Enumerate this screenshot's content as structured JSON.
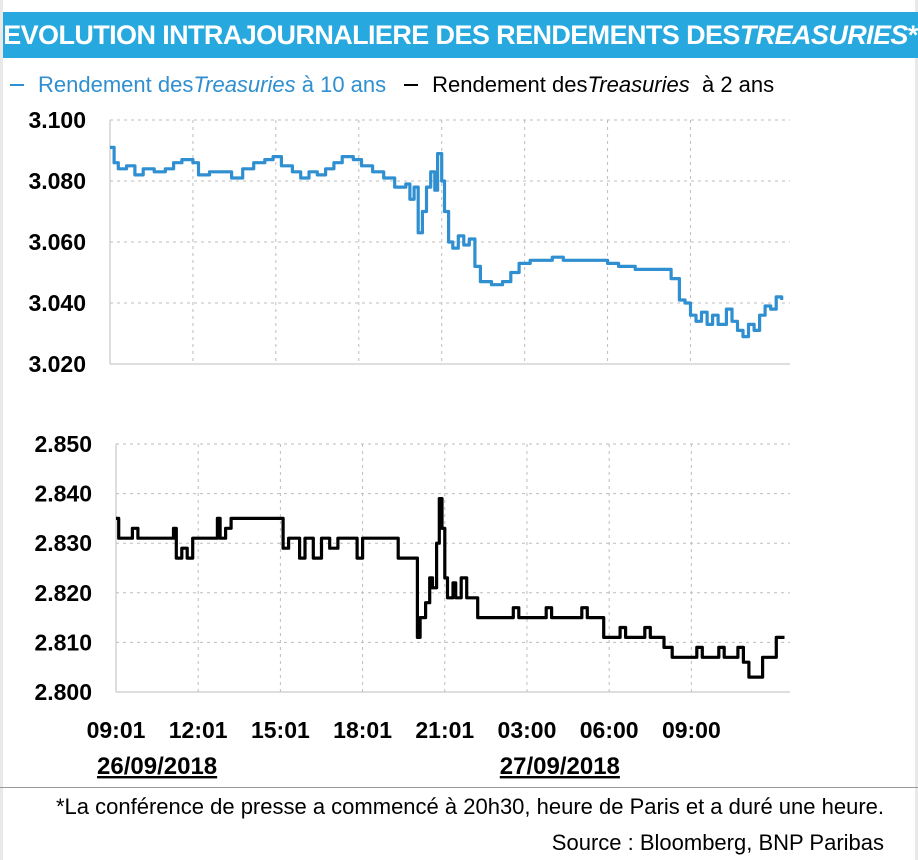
{
  "banner": {
    "title_main": "EVOLUTION INTRAJOURNALIERE DES RENDEMENTS DES ",
    "title_italic": "TREASURIES",
    "title_end": "*"
  },
  "legend": {
    "ten_year": {
      "pre": "Rendement des ",
      "italic": "Treasuries",
      "post": " à 10 ans",
      "color": "#2f8fd0"
    },
    "two_year": {
      "pre": "Rendement des ",
      "italic": "Treasuries",
      "post": "  à 2 ans",
      "color": "#000000"
    }
  },
  "footer": {
    "note": "*La conférence de presse a commencé à 20h30, heure de Paris et a duré une heure.",
    "source": "Source : Bloomberg, BNP Paribas"
  },
  "chart_data": [
    {
      "type": "line",
      "series": [
        {
          "name": "Rendement des Treasuries à 10 ans",
          "color": "#2f8fd0",
          "points": [
            [
              0,
              3.091
            ],
            [
              0.15,
              3.086
            ],
            [
              0.3,
              3.084
            ],
            [
              0.6,
              3.085
            ],
            [
              0.9,
              3.082
            ],
            [
              1.2,
              3.084
            ],
            [
              1.6,
              3.083
            ],
            [
              2.0,
              3.084
            ],
            [
              2.3,
              3.086
            ],
            [
              2.6,
              3.087
            ],
            [
              3.0,
              3.086
            ],
            [
              3.2,
              3.082
            ],
            [
              3.6,
              3.083
            ],
            [
              4.0,
              3.083
            ],
            [
              4.4,
              3.081
            ],
            [
              4.8,
              3.084
            ],
            [
              5.2,
              3.086
            ],
            [
              5.6,
              3.087
            ],
            [
              5.9,
              3.088
            ],
            [
              6.2,
              3.085
            ],
            [
              6.6,
              3.083
            ],
            [
              6.9,
              3.081
            ],
            [
              7.2,
              3.083
            ],
            [
              7.5,
              3.082
            ],
            [
              7.8,
              3.084
            ],
            [
              8.1,
              3.086
            ],
            [
              8.4,
              3.088
            ],
            [
              8.8,
              3.087
            ],
            [
              9.1,
              3.085
            ],
            [
              9.5,
              3.083
            ],
            [
              9.9,
              3.081
            ],
            [
              10.3,
              3.078
            ],
            [
              10.7,
              3.079
            ],
            [
              10.85,
              3.074
            ],
            [
              11.0,
              3.078
            ],
            [
              11.15,
              3.063
            ],
            [
              11.3,
              3.07
            ],
            [
              11.45,
              3.078
            ],
            [
              11.6,
              3.083
            ],
            [
              11.75,
              3.077
            ],
            [
              11.85,
              3.089
            ],
            [
              12.0,
              3.08
            ],
            [
              12.1,
              3.07
            ],
            [
              12.25,
              3.06
            ],
            [
              12.4,
              3.058
            ],
            [
              12.6,
              3.062
            ],
            [
              12.8,
              3.059
            ],
            [
              13.0,
              3.061
            ],
            [
              13.2,
              3.052
            ],
            [
              13.4,
              3.047
            ],
            [
              13.8,
              3.046
            ],
            [
              14.2,
              3.047
            ],
            [
              14.5,
              3.05
            ],
            [
              14.8,
              3.053
            ],
            [
              15.2,
              3.054
            ],
            [
              15.6,
              3.054
            ],
            [
              16.0,
              3.055
            ],
            [
              16.4,
              3.054
            ],
            [
              17.0,
              3.054
            ],
            [
              17.6,
              3.054
            ],
            [
              18.0,
              3.053
            ],
            [
              18.4,
              3.052
            ],
            [
              19.0,
              3.051
            ],
            [
              19.6,
              3.051
            ],
            [
              20.0,
              3.051
            ],
            [
              20.3,
              3.048
            ],
            [
              20.6,
              3.041
            ],
            [
              20.8,
              3.04
            ],
            [
              21.0,
              3.036
            ],
            [
              21.2,
              3.034
            ],
            [
              21.4,
              3.037
            ],
            [
              21.6,
              3.033
            ],
            [
              21.8,
              3.036
            ],
            [
              22.0,
              3.033
            ],
            [
              22.3,
              3.038
            ],
            [
              22.5,
              3.034
            ],
            [
              22.7,
              3.031
            ],
            [
              22.9,
              3.029
            ],
            [
              23.1,
              3.033
            ],
            [
              23.3,
              3.031
            ],
            [
              23.5,
              3.036
            ],
            [
              23.7,
              3.039
            ],
            [
              23.9,
              3.038
            ],
            [
              24.1,
              3.042
            ],
            [
              24.3,
              3.041
            ]
          ]
        }
      ],
      "ylim": [
        3.02,
        3.1
      ],
      "yticks": [
        "3.100",
        "3.080",
        "3.060",
        "3.040",
        "3.020"
      ],
      "ytick_values": [
        3.1,
        3.08,
        3.06,
        3.04,
        3.02
      ],
      "xlim": [
        0,
        24.6
      ],
      "grid": true
    },
    {
      "type": "line",
      "series": [
        {
          "name": "Rendement des Treasuries à 2 ans",
          "color": "#000000",
          "points": [
            [
              0,
              2.835
            ],
            [
              0.1,
              2.831
            ],
            [
              0.5,
              2.831
            ],
            [
              0.6,
              2.833
            ],
            [
              0.8,
              2.831
            ],
            [
              1.4,
              2.831
            ],
            [
              2.0,
              2.831
            ],
            [
              2.1,
              2.833
            ],
            [
              2.2,
              2.827
            ],
            [
              2.4,
              2.829
            ],
            [
              2.6,
              2.827
            ],
            [
              2.8,
              2.831
            ],
            [
              3.0,
              2.831
            ],
            [
              3.6,
              2.831
            ],
            [
              3.7,
              2.835
            ],
            [
              3.8,
              2.831
            ],
            [
              4.0,
              2.833
            ],
            [
              4.2,
              2.835
            ],
            [
              4.6,
              2.835
            ],
            [
              5.0,
              2.835
            ],
            [
              5.6,
              2.835
            ],
            [
              6.0,
              2.835
            ],
            [
              6.1,
              2.829
            ],
            [
              6.3,
              2.831
            ],
            [
              6.6,
              2.831
            ],
            [
              6.7,
              2.827
            ],
            [
              6.9,
              2.831
            ],
            [
              7.2,
              2.827
            ],
            [
              7.5,
              2.831
            ],
            [
              7.8,
              2.829
            ],
            [
              8.1,
              2.831
            ],
            [
              8.4,
              2.831
            ],
            [
              8.7,
              2.831
            ],
            [
              8.8,
              2.827
            ],
            [
              9.0,
              2.831
            ],
            [
              9.3,
              2.831
            ],
            [
              9.6,
              2.831
            ],
            [
              10.2,
              2.831
            ],
            [
              10.3,
              2.827
            ],
            [
              10.9,
              2.827
            ],
            [
              11.0,
              2.811
            ],
            [
              11.1,
              2.815
            ],
            [
              11.3,
              2.818
            ],
            [
              11.45,
              2.823
            ],
            [
              11.55,
              2.821
            ],
            [
              11.7,
              2.83
            ],
            [
              11.8,
              2.839
            ],
            [
              11.9,
              2.833
            ],
            [
              12.0,
              2.823
            ],
            [
              12.1,
              2.819
            ],
            [
              12.3,
              2.822
            ],
            [
              12.4,
              2.819
            ],
            [
              12.6,
              2.823
            ],
            [
              12.8,
              2.819
            ],
            [
              13.0,
              2.819
            ],
            [
              13.2,
              2.815
            ],
            [
              13.8,
              2.815
            ],
            [
              14.4,
              2.815
            ],
            [
              14.5,
              2.817
            ],
            [
              14.7,
              2.815
            ],
            [
              15.0,
              2.815
            ],
            [
              15.6,
              2.815
            ],
            [
              15.7,
              2.817
            ],
            [
              15.9,
              2.815
            ],
            [
              16.4,
              2.815
            ],
            [
              16.8,
              2.815
            ],
            [
              17.0,
              2.817
            ],
            [
              17.2,
              2.815
            ],
            [
              17.6,
              2.815
            ],
            [
              17.8,
              2.811
            ],
            [
              18.2,
              2.811
            ],
            [
              18.4,
              2.813
            ],
            [
              18.6,
              2.811
            ],
            [
              19.0,
              2.811
            ],
            [
              19.3,
              2.813
            ],
            [
              19.5,
              2.811
            ],
            [
              19.8,
              2.811
            ],
            [
              20.0,
              2.809
            ],
            [
              20.3,
              2.807
            ],
            [
              20.6,
              2.807
            ],
            [
              21.0,
              2.807
            ],
            [
              21.2,
              2.809
            ],
            [
              21.4,
              2.807
            ],
            [
              21.8,
              2.807
            ],
            [
              22.0,
              2.809
            ],
            [
              22.2,
              2.807
            ],
            [
              22.6,
              2.807
            ],
            [
              22.7,
              2.809
            ],
            [
              22.9,
              2.806
            ],
            [
              23.1,
              2.803
            ],
            [
              23.3,
              2.803
            ],
            [
              23.5,
              2.803
            ],
            [
              23.6,
              2.807
            ],
            [
              23.8,
              2.807
            ],
            [
              24.0,
              2.807
            ],
            [
              24.1,
              2.811
            ],
            [
              24.4,
              2.811
            ]
          ]
        }
      ],
      "ylim": [
        2.8,
        2.85
      ],
      "yticks": [
        "2.850",
        "2.840",
        "2.830",
        "2.820",
        "2.810",
        "2.800"
      ],
      "ytick_values": [
        2.85,
        2.84,
        2.83,
        2.82,
        2.81,
        2.8
      ],
      "xlim": [
        0,
        24.6
      ],
      "xticks": [
        "09:01",
        "12:01",
        "15:01",
        "18:01",
        "21:01",
        "03:00",
        "06:00",
        "09:00"
      ],
      "xtick_values": [
        0,
        3,
        6,
        9,
        12,
        15,
        18,
        21
      ],
      "date_labels": [
        {
          "text": "26/09/2018",
          "at": 1.5
        },
        {
          "text": "27/09/2018",
          "at": 16.2
        }
      ],
      "grid": true
    }
  ]
}
